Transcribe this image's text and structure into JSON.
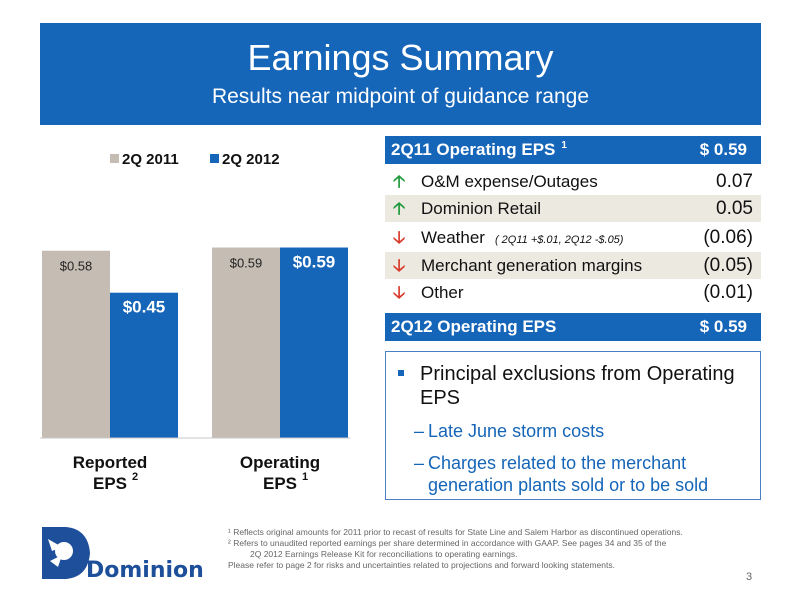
{
  "header": {
    "title": "Earnings Summary",
    "subtitle": "Results near midpoint of guidance range"
  },
  "chart_data": {
    "type": "bar",
    "categories": [
      "Reported EPS",
      "Operating EPS"
    ],
    "category_labels": [
      {
        "line1": "Reported",
        "line2": "EPS",
        "sup": "2"
      },
      {
        "line1": "Operating",
        "line2": "EPS",
        "sup": "1"
      }
    ],
    "series": [
      {
        "name": "2Q 2011",
        "color": "#c5bdb3",
        "values": [
          0.58,
          0.59
        ],
        "labels": [
          "$0.58",
          "$0.59"
        ]
      },
      {
        "name": "2Q 2012",
        "color": "#1565b8",
        "values": [
          0.45,
          0.59
        ],
        "labels": [
          "$0.45",
          "$0.59"
        ]
      }
    ],
    "ylim": [
      0,
      0.7
    ],
    "legend": "top",
    "grid": false
  },
  "eps_table": {
    "header": {
      "label": "2Q11 Operating EPS",
      "sup": "1",
      "value": "$ 0.59"
    },
    "items": [
      {
        "direction": "up",
        "label": "O&M expense/Outages",
        "note": "",
        "value": "0.07"
      },
      {
        "direction": "up",
        "label": "Dominion Retail",
        "note": "",
        "value": "0.05"
      },
      {
        "direction": "down",
        "label": "Weather",
        "note": "( 2Q11 +$.01, 2Q12 -$.05)",
        "value": "(0.06)"
      },
      {
        "direction": "down",
        "label": "Merchant generation margins",
        "note": "",
        "value": "(0.05)"
      },
      {
        "direction": "down",
        "label": "Other",
        "note": "",
        "value": "(0.01)"
      }
    ],
    "footer": {
      "label": "2Q12 Operating EPS",
      "value": "$ 0.59"
    }
  },
  "exclusions": {
    "title": "Principal exclusions from Operating EPS",
    "items": [
      "Late June storm costs",
      "Charges related to the merchant generation plants sold or to be sold"
    ]
  },
  "logo": {
    "text": "Dominion"
  },
  "footnotes": {
    "line1": "¹ Reflects original amounts for 2011 prior to recast of results for State Line and Salem Harbor as discontinued operations.",
    "line2": "² Refers to unaudited reported earnings per share determined in accordance with GAAP. See pages 34 and 35 of the",
    "line3": "2Q 2012 Earnings Release Kit for reconciliations to operating earnings.",
    "line4": "Please refer to page 2 for risks and uncertainties related to projections and forward looking statements."
  },
  "page_number": "3"
}
